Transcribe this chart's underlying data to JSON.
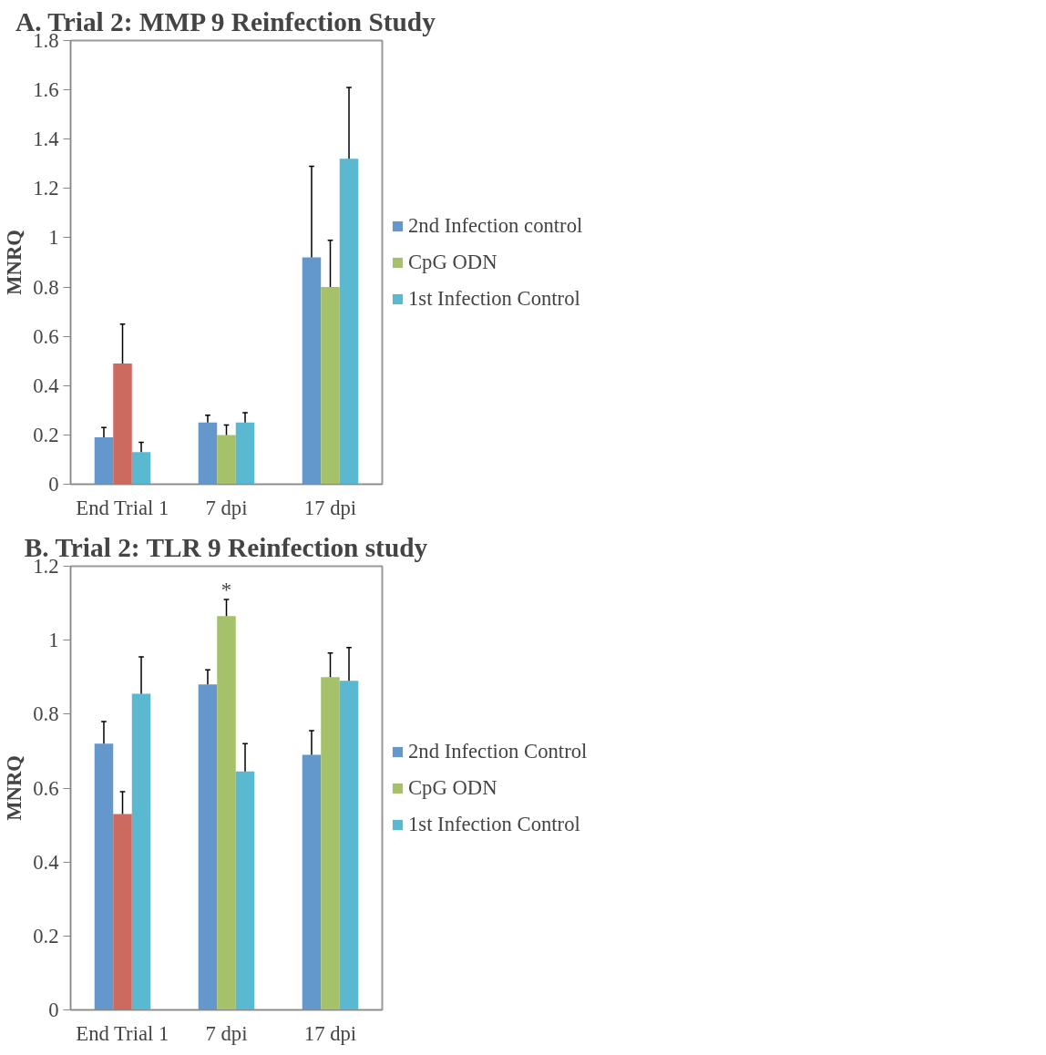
{
  "chart_data": [
    {
      "type": "bar",
      "title": "A. Trial 2: MMP 9 Reinfection Study",
      "ylabel": "MNRQ",
      "categories": [
        "End Trial 1",
        "7 dpi",
        "17 dpi"
      ],
      "ylim": [
        0,
        1.8
      ],
      "yticks": [
        0,
        0.2,
        0.4,
        0.6,
        0.8,
        1,
        1.2,
        1.4,
        1.6,
        1.8
      ],
      "legend": "right",
      "grid": false,
      "series": [
        {
          "name": "2nd Infection control",
          "color": "#6497cb",
          "values": [
            0.19,
            0.25,
            0.92
          ],
          "errors": [
            [
              0.19,
              0.23
            ],
            [
              0.25,
              0.28
            ],
            [
              0.92,
              1.29
            ]
          ]
        },
        {
          "name": "CpG ODN",
          "color": "#a5c26b",
          "values": [
            null,
            0.2,
            0.8
          ],
          "errors": [
            null,
            [
              0.2,
              0.24
            ],
            [
              0.8,
              0.99
            ]
          ]
        },
        {
          "name": "1st Infection Control",
          "color": "#5bb8d1",
          "values": [
            0.13,
            0.25,
            1.32
          ],
          "errors": [
            [
              0.13,
              0.17
            ],
            [
              0.25,
              0.29
            ],
            [
              1.32,
              1.61
            ]
          ]
        },
        {
          "color": "#cc6a60",
          "values": [
            0.49,
            null,
            null
          ],
          "errors": [
            [
              0.49,
              0.65
            ],
            null,
            null
          ]
        }
      ]
    },
    {
      "type": "bar",
      "title": "B. Trial 2: TLR 9 Reinfection study",
      "ylabel": "MNRQ",
      "categories": [
        "End Trial 1",
        "7 dpi",
        "17 dpi"
      ],
      "ylim": [
        0,
        1.2
      ],
      "yticks": [
        0,
        0.2,
        0.4,
        0.6,
        0.8,
        1,
        1.2
      ],
      "legend": "right",
      "grid": false,
      "annotations": [
        {
          "text": "*",
          "x": "7 dpi",
          "y": 1.065
        }
      ],
      "series": [
        {
          "name": "2nd Infection Control",
          "color": "#6497cb",
          "values": [
            0.72,
            0.88,
            0.69
          ],
          "errors": [
            [
              0.72,
              0.78
            ],
            [
              0.88,
              0.92
            ],
            [
              0.69,
              0.755
            ]
          ]
        },
        {
          "name": "CpG ODN",
          "color": "#a5c26b",
          "values": [
            null,
            1.065,
            0.9
          ],
          "errors": [
            null,
            [
              1.065,
              1.11
            ],
            [
              0.9,
              0.965
            ]
          ]
        },
        {
          "name": "1st Infection Control",
          "color": "#5bb8d1",
          "values": [
            0.855,
            0.645,
            0.89
          ],
          "errors": [
            [
              0.855,
              0.955
            ],
            [
              0.645,
              0.72
            ],
            [
              0.89,
              0.98
            ]
          ]
        },
        {
          "color": "#cc6a60",
          "values": [
            0.53,
            null,
            null
          ],
          "errors": [
            [
              0.53,
              0.59
            ],
            null,
            null
          ]
        }
      ]
    }
  ]
}
